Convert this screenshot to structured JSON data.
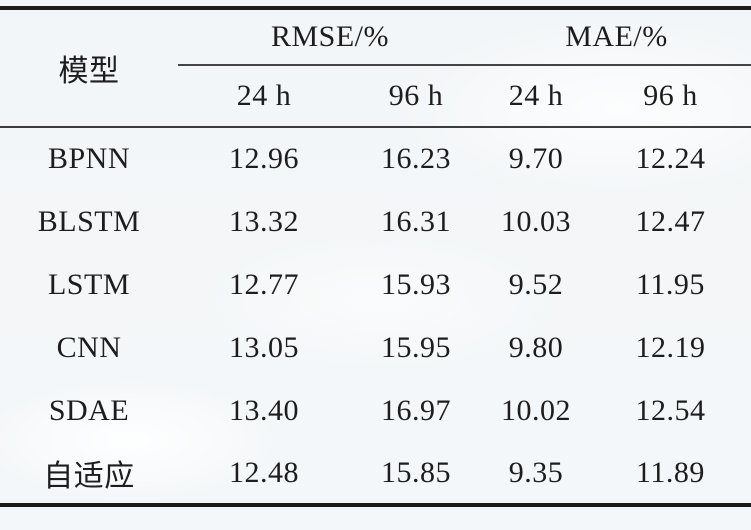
{
  "table": {
    "header": {
      "model_label": "模型",
      "groups": [
        "RMSE/%",
        "MAE/%"
      ],
      "sub_columns": [
        "24 h",
        "96 h",
        "24 h",
        "96 h"
      ]
    },
    "rows": [
      {
        "model": "BPNN",
        "values": [
          "12.96",
          "16.23",
          "9.70",
          "12.24"
        ]
      },
      {
        "model": "BLSTM",
        "values": [
          "13.32",
          "16.31",
          "10.03",
          "12.47"
        ]
      },
      {
        "model": "LSTM",
        "values": [
          "12.77",
          "15.93",
          "9.52",
          "11.95"
        ]
      },
      {
        "model": "CNN",
        "values": [
          "13.05",
          "15.95",
          "9.80",
          "12.19"
        ]
      },
      {
        "model": "SDAE",
        "values": [
          "13.40",
          "16.97",
          "10.02",
          "12.54"
        ]
      },
      {
        "model": "自适应",
        "values": [
          "12.48",
          "15.85",
          "9.35",
          "11.89"
        ]
      }
    ]
  }
}
